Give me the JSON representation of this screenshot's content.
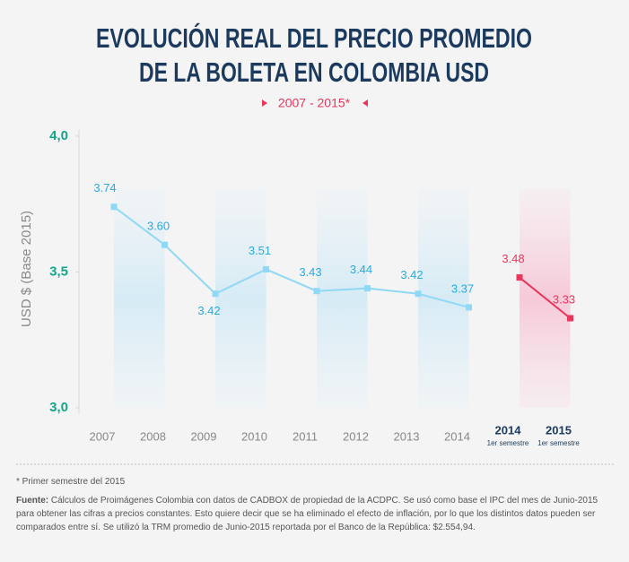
{
  "chart_data": {
    "type": "line",
    "title": [
      "EVOLUCIÓN REAL DEL PRECIO PROMEDIO",
      "DE LA BOLETA EN COLOMBIA USD"
    ],
    "subtitle": "2007 - 2015*",
    "y_label": "USD $ (Base 2015)",
    "categories": [
      "2007",
      "2008",
      "2009",
      "2010",
      "2011",
      "2012",
      "2013",
      "2014",
      "2014",
      "2015"
    ],
    "category_notes": [
      null,
      null,
      null,
      null,
      null,
      null,
      null,
      null,
      "1er semestre",
      "1er semestre"
    ],
    "series": [
      {
        "color": "#8fd8f6",
        "label_color": "#29abe2",
        "values": [
          3.74,
          3.6,
          3.42,
          3.51,
          3.43,
          3.44,
          3.42,
          3.37,
          null,
          null
        ],
        "value_labels": [
          "3.74",
          "3.60",
          "3.42",
          "3.51",
          "3.43",
          "3.44",
          "3.42",
          "3.37",
          null,
          null
        ]
      },
      {
        "color": "#e8365d",
        "label_color": "#e8365d",
        "values": [
          null,
          null,
          null,
          null,
          null,
          null,
          null,
          null,
          3.48,
          3.33
        ],
        "value_labels": [
          null,
          null,
          null,
          null,
          null,
          null,
          null,
          null,
          "3.48",
          "3.33"
        ]
      }
    ],
    "ylim": [
      3,
      4
    ],
    "yticks": [
      {
        "value": 3,
        "label": "3,0"
      },
      {
        "value": 3.5,
        "label": "3,5"
      },
      {
        "value": 4,
        "label": "4,0"
      }
    ],
    "footnote": "* Primer semestre del 2015",
    "source_label": "Fuente:",
    "source": "Cálculos de Proimágenes Colombia con datos de CADBOX de propiedad de la ACDPC. Se usó como base el IPC del mes de Junio-2015 para obtener las cifras a precios constantes. Esto quiere decir que se ha eliminado el efecto de inflación, por lo que los distintos datos pueden ser comparados entre sí. Se utilizó la TRM promedio de Junio-2015 reportada por el Banco de la República: $2.554,94."
  }
}
